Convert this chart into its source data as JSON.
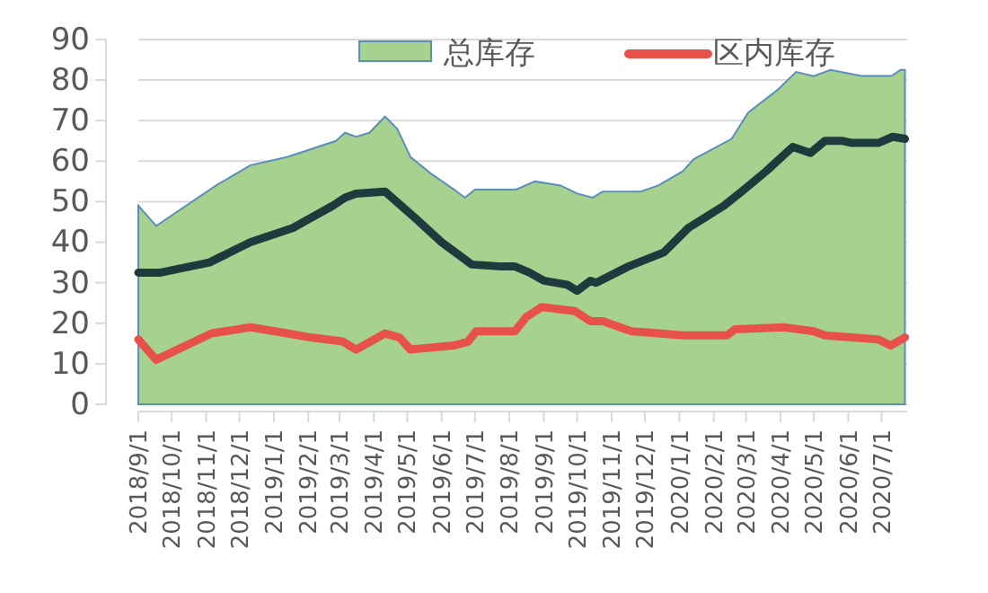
{
  "chart_data": {
    "type": "area",
    "legend": "top",
    "grid": "y",
    "ylim": [
      0,
      90
    ],
    "yticks": [
      0,
      10,
      20,
      30,
      40,
      50,
      60,
      70,
      80,
      90
    ],
    "xlim": [
      "2018-09-01",
      "2020-07-24"
    ],
    "xticks": [
      {
        "value": "2018-09-01",
        "label": "2018/9/1"
      },
      {
        "value": "2018-10-01",
        "label": "2018/10/1"
      },
      {
        "value": "2018-11-01",
        "label": "2018/11/1"
      },
      {
        "value": "2018-12-01",
        "label": "2018/12/1"
      },
      {
        "value": "2019-01-01",
        "label": "2019/1/1"
      },
      {
        "value": "2019-02-01",
        "label": "2019/2/1"
      },
      {
        "value": "2019-03-01",
        "label": "2019/3/1"
      },
      {
        "value": "2019-04-01",
        "label": "2019/4/1"
      },
      {
        "value": "2019-05-01",
        "label": "2019/5/1"
      },
      {
        "value": "2019-06-01",
        "label": "2019/6/1"
      },
      {
        "value": "2019-07-01",
        "label": "2019/7/1"
      },
      {
        "value": "2019-08-01",
        "label": "2019/8/1"
      },
      {
        "value": "2019-09-01",
        "label": "2019/9/1"
      },
      {
        "value": "2019-10-01",
        "label": "2019/10/1"
      },
      {
        "value": "2019-11-01",
        "label": "2019/11/1"
      },
      {
        "value": "2019-12-01",
        "label": "2019/12/1"
      },
      {
        "value": "2020-01-01",
        "label": "2020/1/1"
      },
      {
        "value": "2020-02-01",
        "label": "2020/2/1"
      },
      {
        "value": "2020-03-01",
        "label": "2020/3/1"
      },
      {
        "value": "2020-04-01",
        "label": "2020/4/1"
      },
      {
        "value": "2020-05-01",
        "label": "2020/5/1"
      },
      {
        "value": "2020-06-01",
        "label": "2020/6/1"
      },
      {
        "value": "2020-07-01",
        "label": "2020/7/1"
      }
    ],
    "series": [
      {
        "name": "总库存",
        "type": "area",
        "color": "#a6d18e",
        "x": [
          "2018-09-01",
          "2018-09-17",
          "2018-11-10",
          "2018-12-11",
          "2019-01-13",
          "2019-02-26",
          "2019-03-06",
          "2019-03-16",
          "2019-03-28",
          "2019-04-11",
          "2019-04-22",
          "2019-05-04",
          "2019-05-22",
          "2019-06-12",
          "2019-06-22",
          "2019-07-01",
          "2019-07-25",
          "2019-08-07",
          "2019-08-24",
          "2019-09-16",
          "2019-10-01",
          "2019-10-15",
          "2019-10-24",
          "2019-11-27",
          "2019-12-13",
          "2020-01-04",
          "2020-01-14",
          "2020-02-17",
          "2020-03-03",
          "2020-03-29",
          "2020-04-15",
          "2020-05-01",
          "2020-05-16",
          "2020-06-13",
          "2020-07-10",
          "2020-07-18",
          "2020-07-22"
        ],
        "values": [
          49,
          44,
          54,
          59,
          61,
          65,
          67,
          66,
          67,
          71,
          68,
          61,
          57,
          53,
          51,
          53,
          53,
          53,
          55,
          54,
          52,
          51,
          52.5,
          52.5,
          54,
          57.5,
          60.5,
          65.5,
          72,
          77.5,
          82,
          81,
          82.5,
          81,
          81,
          82.5,
          82.5
        ]
      },
      {
        "type": "line",
        "color": "#1f3a3d",
        "x": [
          "2018-09-01",
          "2018-09-21",
          "2018-11-04",
          "2018-12-11",
          "2019-01-18",
          "2019-02-23",
          "2019-03-06",
          "2019-03-16",
          "2019-04-11",
          "2019-05-10",
          "2019-06-01",
          "2019-06-28",
          "2019-07-25",
          "2019-08-06",
          "2019-08-19",
          "2019-09-01",
          "2019-09-22",
          "2019-10-01",
          "2019-10-13",
          "2019-10-18",
          "2019-11-16",
          "2019-12-18",
          "2020-01-09",
          "2020-02-10",
          "2020-02-26",
          "2020-03-19",
          "2020-04-12",
          "2020-04-28",
          "2020-05-11",
          "2020-05-27",
          "2020-06-04",
          "2020-06-28",
          "2020-07-11",
          "2020-07-22"
        ],
        "values": [
          32.5,
          32.5,
          35,
          40,
          43.5,
          49,
          51,
          52,
          52.5,
          45.5,
          40,
          34.5,
          34,
          34,
          32.5,
          30.5,
          29.5,
          28,
          30.5,
          30,
          34,
          37.5,
          43.5,
          49,
          52.5,
          57.5,
          63.5,
          62,
          65,
          65,
          64.5,
          64.5,
          66,
          65.5
        ]
      },
      {
        "name": "区内库存",
        "type": "line",
        "color": "#e8514a",
        "x": [
          "2018-09-01",
          "2018-09-17",
          "2018-11-06",
          "2018-12-11",
          "2019-01-13",
          "2019-02-03",
          "2019-03-04",
          "2019-03-16",
          "2019-04-11",
          "2019-04-24",
          "2019-05-04",
          "2019-06-12",
          "2019-06-25",
          "2019-07-02",
          "2019-08-06",
          "2019-08-16",
          "2019-08-30",
          "2019-09-29",
          "2019-10-13",
          "2019-10-24",
          "2019-11-19",
          "2019-12-13",
          "2020-01-04",
          "2020-02-13",
          "2020-02-20",
          "2020-04-04",
          "2020-05-01",
          "2020-05-11",
          "2020-06-28",
          "2020-07-09",
          "2020-07-22"
        ],
        "values": [
          16,
          11,
          17.5,
          19,
          17.5,
          16.5,
          15.5,
          13.5,
          17.5,
          16.5,
          13.5,
          14.5,
          15.5,
          18,
          18,
          21.5,
          24,
          23,
          20.5,
          20.5,
          18,
          17.5,
          17,
          17,
          18.5,
          19,
          18,
          17,
          16,
          14.5,
          16.5
        ]
      }
    ]
  }
}
